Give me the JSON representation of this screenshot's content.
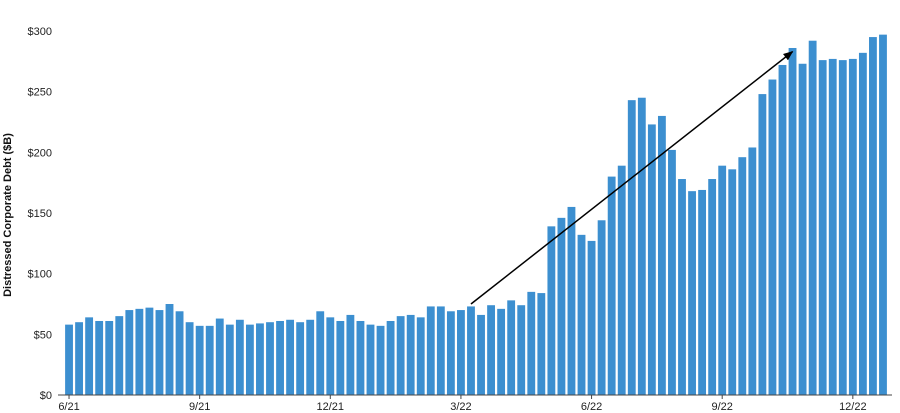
{
  "chart_data": {
    "type": "bar",
    "title": "",
    "xlabel": "",
    "ylabel": "Distressed Corporate Debt ($B)",
    "ylim": [
      0,
      300
    ],
    "yticks": [
      0,
      50,
      100,
      150,
      200,
      250,
      300
    ],
    "ytick_labels": [
      "$0",
      "$50",
      "$100",
      "$150",
      "$200",
      "$250",
      "$300"
    ],
    "xtick_labels": [
      {
        "label": "6/21",
        "index": 0
      },
      {
        "label": "9/21",
        "index": 13
      },
      {
        "label": "12/21",
        "index": 26
      },
      {
        "label": "3/22",
        "index": 39
      },
      {
        "label": "6/22",
        "index": 52
      },
      {
        "label": "9/22",
        "index": 65
      },
      {
        "label": "12/22",
        "index": 78
      }
    ],
    "bar_color": "#3c8fd0",
    "grid": false,
    "values": [
      58,
      60,
      64,
      61,
      61,
      65,
      70,
      71,
      72,
      70,
      75,
      69,
      60,
      57,
      57,
      63,
      58,
      62,
      58,
      59,
      60,
      61,
      62,
      60,
      62,
      69,
      64,
      61,
      66,
      61,
      58,
      57,
      61,
      65,
      66,
      64,
      73,
      73,
      69,
      70,
      73,
      66,
      74,
      71,
      78,
      74,
      85,
      84,
      139,
      146,
      155,
      132,
      127,
      144,
      180,
      189,
      243,
      245,
      223,
      230,
      202,
      178,
      168,
      169,
      178,
      189,
      186,
      196,
      204,
      248,
      260,
      272,
      286,
      273,
      292,
      276,
      277,
      276,
      277,
      282,
      295,
      297
    ],
    "annotations": [
      {
        "type": "arrow",
        "from_index": 40,
        "from_value": 75,
        "to_index": 72,
        "to_value": 283
      }
    ]
  }
}
